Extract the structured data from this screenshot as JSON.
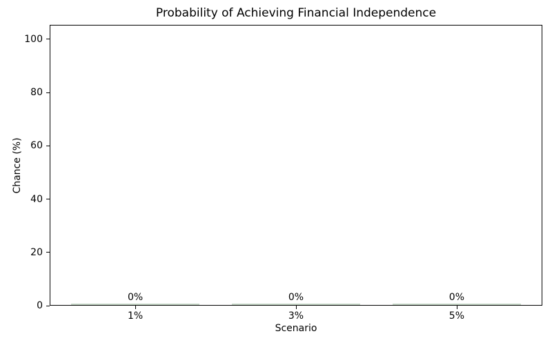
{
  "figure": {
    "background": "#ffffff",
    "axis_color": "#000000",
    "text_color": "#000000"
  },
  "chart_data": {
    "type": "bar",
    "title": "Probability of Achieving Financial Independence",
    "xlabel": "Scenario",
    "ylabel": "Chance (%)",
    "categories": [
      "1%",
      "3%",
      "5%"
    ],
    "values": [
      0,
      0,
      0
    ],
    "bar_labels": [
      "0%",
      "0%",
      "0%"
    ],
    "yticks": [
      0,
      20,
      40,
      60,
      80,
      100
    ],
    "ylim": [
      0,
      105.4
    ],
    "bar_width_fraction": 0.8,
    "bar_visible_color": "#c7d9c9",
    "grid": false,
    "legend": null
  }
}
